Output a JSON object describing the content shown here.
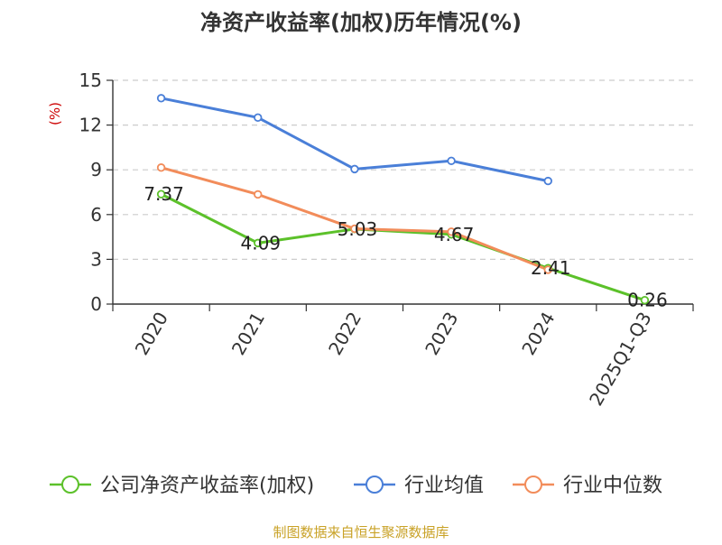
{
  "chart_data": {
    "type": "line",
    "title": "净资产收益率(加权)历年情况(%)",
    "ylabel": "(%)",
    "xlabel": "",
    "categories": [
      "2020",
      "2021",
      "2022",
      "2023",
      "2024",
      "2025Q1-Q3"
    ],
    "ylim": [
      0,
      15
    ],
    "yticks": [
      0,
      3,
      6,
      9,
      12,
      15
    ],
    "grid": true,
    "legend_position": "bottom",
    "series": [
      {
        "name": "公司净资产收益率(加权)",
        "color": "#5cc12a",
        "values": [
          7.37,
          4.09,
          5.03,
          4.67,
          2.41,
          0.26
        ],
        "labels": [
          "7.37",
          "4.09",
          "5.03",
          "4.67",
          "2.41",
          "0.26"
        ]
      },
      {
        "name": "行业均值",
        "color": "#4a7fd8",
        "values": [
          13.8,
          12.5,
          9.05,
          9.6,
          8.25,
          null
        ]
      },
      {
        "name": "行业中位数",
        "color": "#f28c5a",
        "values": [
          9.15,
          7.35,
          5.05,
          4.85,
          2.3,
          null
        ]
      }
    ]
  },
  "footer": {
    "source": "制图数据来自恒生聚源数据库"
  },
  "colors": {
    "title": "#333333",
    "axis": "#333333",
    "grid": "#cccccc",
    "ylabel": "#cc0000",
    "footer": "#c9a227"
  }
}
